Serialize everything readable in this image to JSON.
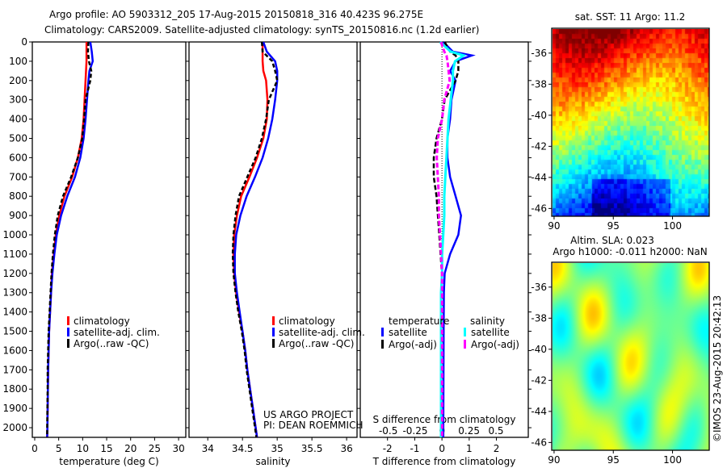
{
  "title_line1": "Argo profile: AO 5903312_205 17-Aug-2015 20150818_316 40.423S 96.275E",
  "title_line2": "Climatology: CARS2009. Satellite-adjusted climatology: synTS_20150816.nc (1.2d earlier)",
  "credit": "©IMOS 23-Aug-2015 20:42:13",
  "colors": {
    "climatology": "#ff0000",
    "satellite": "#0000ff",
    "argo": "#000000",
    "sat_salinity": "#00ffff",
    "argo_salinity": "#ff00ff"
  },
  "chart_data": [
    {
      "type": "line",
      "name": "temperature-profile",
      "xlabel": "temperature (deg C)",
      "ylabel": "",
      "xlim": [
        -0.5,
        31.5
      ],
      "ylim": [
        0,
        2050
      ],
      "xticks": [
        "0",
        "5",
        "10",
        "15",
        "20",
        "25",
        "30"
      ],
      "xtick_values": [
        0,
        5,
        10,
        15,
        20,
        25,
        30
      ],
      "yticks": [
        "0",
        "100",
        "200",
        "300",
        "400",
        "500",
        "600",
        "700",
        "800",
        "900",
        "1000",
        "1100",
        "1200",
        "1300",
        "1400",
        "1500",
        "1600",
        "1700",
        "1800",
        "1900",
        "2000"
      ],
      "depth": [
        0,
        50,
        100,
        150,
        200,
        300,
        400,
        500,
        600,
        700,
        800,
        900,
        1000,
        1100,
        1200,
        1300,
        1400,
        1500,
        1600,
        1700,
        1800,
        1900,
        2000,
        2050
      ],
      "series": [
        {
          "name": "climatology",
          "values": [
            10.8,
            10.8,
            10.8,
            10.7,
            10.6,
            10.4,
            10.2,
            9.8,
            9.0,
            7.8,
            6.2,
            5.1,
            4.4,
            4.0,
            3.6,
            3.4,
            3.2,
            3.0,
            2.9,
            2.8,
            2.75,
            2.7,
            2.65,
            2.6
          ]
        },
        {
          "name": "satellite-adj. clim.",
          "values": [
            11.6,
            11.9,
            12.1,
            11.4,
            11.2,
            10.9,
            10.6,
            10.2,
            9.5,
            8.4,
            6.8,
            5.5,
            4.6,
            4.1,
            3.7,
            3.4,
            3.2,
            3.0,
            2.9,
            2.8,
            2.75,
            2.7,
            2.65,
            2.6
          ]
        },
        {
          "name": "Argo(..raw -QC)",
          "values": [
            11.2,
            11.1,
            11.3,
            11.8,
            11.6,
            10.6,
            10.3,
            9.9,
            9.0,
            7.6,
            5.9,
            4.8,
            4.2,
            3.8,
            3.5,
            3.3,
            3.1,
            2.9,
            2.8,
            2.7,
            2.7,
            2.65,
            2.6,
            2.6
          ]
        }
      ],
      "legend": [
        "climatology",
        "satellite-adj. clim.",
        "Argo(..raw -QC)"
      ],
      "legend_position": "lower-right"
    },
    {
      "type": "line",
      "name": "salinity-profile",
      "xlabel": "salinity",
      "xlim": [
        33.73,
        36.15
      ],
      "ylim": [
        0,
        2050
      ],
      "xticks": [
        "34",
        "34.5",
        "35",
        "35.5",
        "36"
      ],
      "xtick_values": [
        34,
        34.5,
        35,
        35.5,
        36
      ],
      "depth": [
        0,
        50,
        100,
        150,
        200,
        300,
        400,
        500,
        600,
        700,
        800,
        900,
        1000,
        1100,
        1200,
        1300,
        1400,
        1500,
        1600,
        1700,
        1800,
        1900,
        2000,
        2050
      ],
      "series": [
        {
          "name": "climatology",
          "values": [
            34.79,
            34.79,
            34.79,
            34.8,
            34.84,
            34.86,
            34.85,
            34.8,
            34.71,
            34.6,
            34.48,
            34.42,
            34.38,
            34.37,
            34.38,
            34.41,
            34.45,
            34.5,
            34.54,
            34.57,
            34.61,
            34.65,
            34.69,
            34.71
          ]
        },
        {
          "name": "satellite-adj. clim.",
          "values": [
            34.8,
            34.85,
            34.97,
            35.0,
            35.0,
            34.97,
            34.93,
            34.87,
            34.79,
            34.68,
            34.56,
            34.47,
            34.41,
            34.39,
            34.39,
            34.42,
            34.46,
            34.5,
            34.54,
            34.57,
            34.61,
            34.65,
            34.69,
            34.71
          ]
        },
        {
          "name": "Argo(..raw -QC)",
          "values": [
            34.78,
            34.79,
            34.93,
            34.97,
            35.0,
            34.88,
            34.84,
            34.78,
            34.69,
            34.57,
            34.45,
            34.4,
            34.37,
            34.36,
            34.37,
            34.4,
            34.44,
            34.49,
            34.53,
            34.56,
            34.6,
            34.64,
            34.68,
            34.7
          ]
        }
      ],
      "legend": [
        "climatology",
        "satellite-adj. clim.",
        "Argo(..raw -QC)"
      ],
      "legend_position": "lower-right",
      "annotation": [
        "US ARGO PROJECT",
        "PI: DEAN ROEMMICH"
      ]
    },
    {
      "type": "line",
      "name": "difference-profile",
      "xlabel": "T difference from climatology",
      "xlabel2": "S difference from climatology",
      "xlim": [
        -3.0,
        3.17
      ],
      "xlim2": [
        -0.76,
        0.8
      ],
      "ylim": [
        0,
        2050
      ],
      "xticks": [
        "-2",
        "-1",
        "0",
        "1",
        "2"
      ],
      "xtick_values": [
        -2,
        -1,
        0,
        1,
        2
      ],
      "xticks2": [
        "-0.5",
        "-0.25",
        "0",
        "0.25",
        "0.5"
      ],
      "xtick_values2": [
        -0.5,
        -0.25,
        0,
        0.25,
        0.5
      ],
      "depth": [
        0,
        50,
        70,
        100,
        150,
        200,
        300,
        400,
        500,
        600,
        700,
        800,
        900,
        1000,
        1100,
        1200,
        1300,
        1500,
        2000,
        2050
      ],
      "series": [
        {
          "name": "temperature satellite",
          "axis": "T",
          "values": [
            0.05,
            0.4,
            1.1,
            0.5,
            0.3,
            0.5,
            0.35,
            0.3,
            0.2,
            0.2,
            0.3,
            0.5,
            0.7,
            0.6,
            0.3,
            0.1,
            0.07,
            0.06,
            0.05,
            0.05
          ]
        },
        {
          "name": "temperature Argo(-adj)",
          "axis": "T",
          "values": [
            0.1,
            0.3,
            0.5,
            0.6,
            0.6,
            0.5,
            0.1,
            0.0,
            -0.2,
            -0.3,
            -0.3,
            -0.2,
            -0.15,
            -0.1,
            -0.05,
            0.0,
            0.0,
            0.0,
            0.0,
            0.0
          ]
        },
        {
          "name": "salinity satellite",
          "axis": "S",
          "values": [
            -0.02,
            0.08,
            0.2,
            0.12,
            0.1,
            0.1,
            0.08,
            0.06,
            0.05,
            0.04,
            0.03,
            0.02,
            0.02,
            0.01,
            0.0,
            0.0,
            -0.01,
            -0.01,
            -0.01,
            -0.01
          ]
        },
        {
          "name": "salinity Argo(-adj)",
          "axis": "S",
          "values": [
            -0.01,
            0.02,
            0.04,
            0.05,
            0.06,
            0.07,
            0.02,
            0.0,
            -0.04,
            -0.05,
            -0.04,
            -0.03,
            -0.03,
            -0.02,
            -0.01,
            0.0,
            0.0,
            0.0,
            0.0,
            0.0
          ]
        }
      ],
      "legend_headers": [
        "temperature",
        "salinity"
      ],
      "legend": [
        "satellite",
        "Argo(-adj)",
        "satellite",
        "Argo(-adj)"
      ],
      "legend_position": "lower-center"
    },
    {
      "type": "heatmap",
      "name": "sst-map",
      "title": "sat. SST: 11 Argo: 11.2",
      "xlim": [
        89.8,
        103.1
      ],
      "ylim": [
        -46.5,
        -34.4
      ],
      "xticks": [
        "90",
        "95",
        "100"
      ],
      "xtick_values": [
        90,
        95,
        100
      ],
      "yticks": [
        "-36",
        "-38",
        "-40",
        "-42",
        "-44",
        "-46"
      ],
      "ytick_values": [
        -36,
        -38,
        -40,
        -42,
        -44,
        -46
      ]
    },
    {
      "type": "heatmap",
      "name": "sla-map",
      "title_line1": "Altim. SLA: 0.023",
      "title_line2": "Argo h1000: -0.011 h2000: NaN",
      "xlim": [
        89.8,
        103.1
      ],
      "ylim": [
        -46.5,
        -34.4
      ],
      "xticks": [
        "90",
        "95",
        "100"
      ],
      "xtick_values": [
        90,
        95,
        100
      ],
      "yticks": [
        "-36",
        "-38",
        "-40",
        "-42",
        "-44",
        "-46"
      ],
      "ytick_values": [
        -36,
        -38,
        -40,
        -42,
        -44,
        -46
      ]
    }
  ]
}
